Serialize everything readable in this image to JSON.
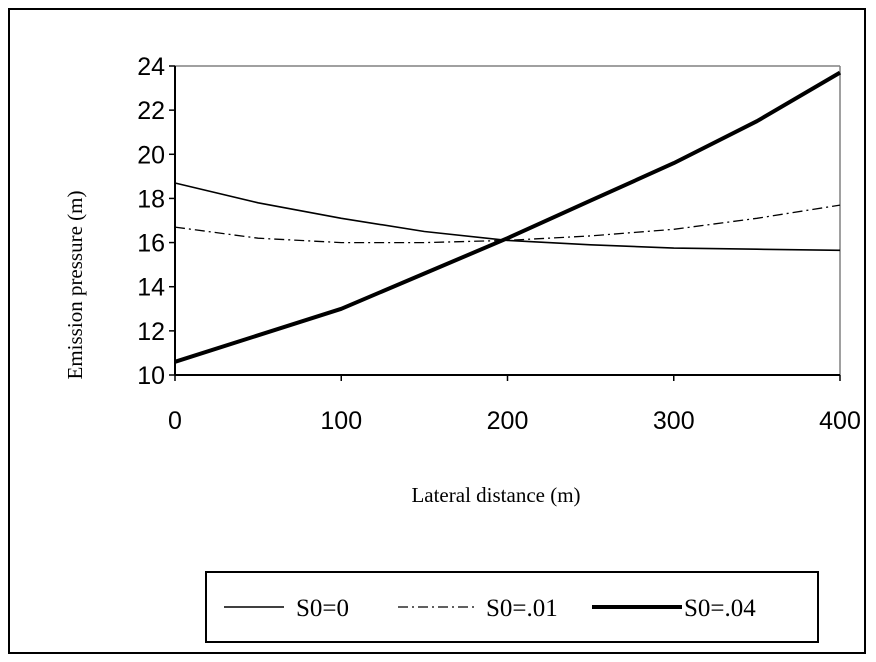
{
  "chart_data": {
    "type": "line",
    "title": "",
    "xlabel": "Lateral distance (m)",
    "ylabel": "Emission pressure (m)",
    "xlim": [
      0,
      400
    ],
    "ylim": [
      10,
      24
    ],
    "x_ticks": [
      0,
      100,
      200,
      300,
      400
    ],
    "y_ticks": [
      10,
      12,
      14,
      16,
      18,
      20,
      22,
      24
    ],
    "grid": false,
    "legend_position": "bottom",
    "x": [
      0,
      50,
      100,
      150,
      200,
      250,
      300,
      350,
      400
    ],
    "series": [
      {
        "name": "S0=0",
        "style": "solid-thin",
        "color": "#000000",
        "values": [
          18.7,
          17.8,
          17.1,
          16.5,
          16.1,
          15.9,
          15.75,
          15.7,
          15.65
        ]
      },
      {
        "name": "S0=.01",
        "style": "dash-dot",
        "color": "#000000",
        "values": [
          16.7,
          16.2,
          16.0,
          16.0,
          16.1,
          16.3,
          16.6,
          17.1,
          17.7
        ]
      },
      {
        "name": "S0=.04",
        "style": "solid-thick",
        "color": "#000000",
        "values": [
          10.6,
          11.8,
          13.0,
          14.6,
          16.2,
          17.9,
          19.6,
          21.5,
          23.7
        ]
      }
    ]
  }
}
